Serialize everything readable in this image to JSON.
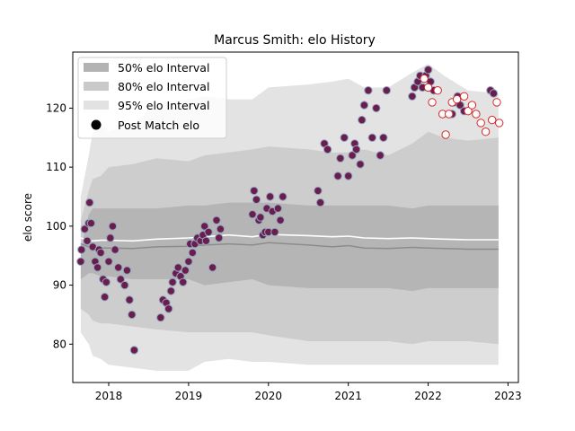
{
  "chart_data": {
    "type": "scatter",
    "title": "Marcus Smith: elo History",
    "xlabel": "",
    "ylabel": "elo score",
    "xlim": [
      2017.55,
      2023.13
    ],
    "ylim": [
      73.5,
      129.5
    ],
    "x_ticks": [
      2018,
      2019,
      2020,
      2021,
      2022,
      2023
    ],
    "x_tick_labels": [
      "2018",
      "2019",
      "2020",
      "2021",
      "2022",
      "2023"
    ],
    "y_ticks": [
      80,
      90,
      100,
      110,
      120
    ],
    "y_tick_labels": [
      "80",
      "90",
      "100",
      "110",
      "120"
    ],
    "grid": false,
    "legend_position": "top-left",
    "legend": [
      {
        "label": "50% elo Interval",
        "kind": "band",
        "color": "#b3b3b3"
      },
      {
        "label": "80% elo Interval",
        "kind": "band",
        "color": "#c9c9c9"
      },
      {
        "label": "95% elo Interval",
        "kind": "band",
        "color": "#e2e2e2"
      },
      {
        "label": "Post Match elo",
        "kind": "marker",
        "color": "#000000"
      }
    ],
    "colors": {
      "band_95": "#e3e3e3",
      "band_80": "#cdcdcd",
      "band_50": "#b5b5b5",
      "median_line": "#8c8c8c",
      "mean_line": "#ffffff",
      "point_fill": "#6b1e4c",
      "point_edge": "#8fa6c4",
      "future_point_fill": "#ffffff",
      "future_point_edge": "#d62728"
    },
    "bands": {
      "x": [
        2017.65,
        2017.75,
        2017.8,
        2017.9,
        2018.0,
        2018.3,
        2018.6,
        2019.0,
        2019.2,
        2019.5,
        2019.8,
        2020.0,
        2020.5,
        2020.8,
        2021.0,
        2021.2,
        2021.5,
        2021.8,
        2022.0,
        2022.2,
        2022.5,
        2022.88
      ],
      "p95_upper": [
        105,
        112,
        116,
        117,
        116,
        117,
        121,
        121.5,
        122,
        121.5,
        121.5,
        123.5,
        124,
        124.5,
        125,
        123.5,
        123.5,
        126,
        127.5,
        125.5,
        123,
        122.5
      ],
      "p80_upper": [
        101,
        106,
        108,
        108.5,
        110,
        110.5,
        111.5,
        111,
        112,
        112.5,
        113,
        113.5,
        113,
        112.5,
        112.5,
        113,
        112,
        114,
        116,
        115,
        114.5,
        115
      ],
      "p50_upper": [
        96,
        102,
        103,
        103,
        103,
        103,
        103,
        103.5,
        103.5,
        104,
        104,
        104,
        103.5,
        103.5,
        103.5,
        103.5,
        103.5,
        103,
        103.5,
        103.5,
        103.5,
        103.5
      ],
      "p50_lower": [
        91,
        92,
        92,
        91.5,
        91.5,
        91,
        91,
        91,
        90,
        90.5,
        91,
        90,
        89.5,
        89.5,
        89.5,
        89.5,
        89.5,
        89,
        89.5,
        89.5,
        89.5,
        89.5
      ],
      "p80_lower": [
        86,
        85,
        84,
        83.5,
        83.5,
        83,
        82.5,
        82,
        82,
        82,
        82,
        81.5,
        80.5,
        80.5,
        80.5,
        80.5,
        80.5,
        80,
        80.5,
        80.5,
        80.5,
        80
      ],
      "p95_lower": [
        82,
        80,
        78,
        77.5,
        76.5,
        76,
        75.5,
        75.5,
        77,
        77.5,
        77,
        77,
        76.5,
        76.5,
        76.5,
        76.5,
        76.5,
        76.5,
        76.5,
        76.5,
        76.5,
        76.5
      ],
      "median": [
        97,
        96.5,
        96.3,
        96.3,
        96.3,
        96.2,
        96.5,
        96.6,
        96.8,
        97,
        96.8,
        97.2,
        96.8,
        96.5,
        96.7,
        96.3,
        96.2,
        96.4,
        96.3,
        96.2,
        96.1,
        96.1
      ],
      "mean": [
        98,
        97.6,
        97.5,
        97.6,
        97.6,
        97.5,
        97.8,
        98,
        98.2,
        98.5,
        98.2,
        98.6,
        98.4,
        98.2,
        98.3,
        98,
        97.9,
        98,
        97.9,
        97.8,
        97.7,
        97.7
      ]
    },
    "points": {
      "x": [
        2017.65,
        2017.66,
        2017.7,
        2017.73,
        2017.75,
        2017.76,
        2017.78,
        2017.8,
        2017.83,
        2017.86,
        2017.88,
        2017.9,
        2017.93,
        2017.95,
        2017.97,
        2018.0,
        2018.02,
        2018.05,
        2018.08,
        2018.12,
        2018.15,
        2018.2,
        2018.23,
        2018.26,
        2018.29,
        2018.32,
        2018.65,
        2018.68,
        2018.72,
        2018.75,
        2018.78,
        2018.8,
        2018.84,
        2018.87,
        2018.9,
        2018.93,
        2018.96,
        2019.0,
        2019.02,
        2019.05,
        2019.08,
        2019.11,
        2019.15,
        2019.18,
        2019.2,
        2019.22,
        2019.25,
        2019.3,
        2019.35,
        2019.38,
        2019.4,
        2019.8,
        2019.82,
        2019.85,
        2019.88,
        2019.9,
        2019.93,
        2019.96,
        2019.98,
        2020.0,
        2020.02,
        2020.05,
        2020.08,
        2020.12,
        2020.15,
        2020.18,
        2020.62,
        2020.65,
        2020.7,
        2020.74,
        2020.87,
        2020.9,
        2020.95,
        2021.0,
        2021.05,
        2021.08,
        2021.1,
        2021.15,
        2021.17,
        2021.2,
        2021.25,
        2021.3,
        2021.35,
        2021.4,
        2021.44,
        2021.48,
        2021.8,
        2021.83,
        2021.87,
        2021.9,
        2021.93,
        2021.97,
        2022.0,
        2022.03,
        2022.07,
        2022.3,
        2022.33,
        2022.37,
        2022.4,
        2022.45,
        2022.78,
        2022.82
      ],
      "y": [
        94,
        96,
        99.5,
        97.5,
        100.5,
        104,
        100.5,
        96.5,
        94,
        93,
        96,
        95.5,
        91,
        88,
        90.5,
        94,
        98,
        100,
        96,
        93,
        91,
        90,
        92.5,
        87.5,
        85,
        79,
        84.5,
        87.5,
        87,
        86,
        89,
        90.5,
        92,
        93,
        91.5,
        90.5,
        92.5,
        94,
        97,
        95.5,
        97,
        98,
        97.5,
        98.5,
        100,
        97.5,
        99,
        93,
        101,
        98,
        99.5,
        102,
        106,
        104.5,
        101,
        101.5,
        98.5,
        99,
        103,
        99,
        105,
        102.5,
        99,
        103,
        101,
        105,
        106,
        104,
        114,
        113,
        108.5,
        111.5,
        115,
        108.5,
        112,
        114,
        113,
        110.5,
        118,
        120.5,
        123,
        115,
        120,
        112,
        115,
        123,
        122,
        123.5,
        124.5,
        125.5,
        123.5,
        125.5,
        126.5,
        124.5,
        123,
        119,
        121,
        122,
        120.5,
        119.5,
        123,
        122.5
      ],
      "x_future": [
        2021.95,
        2022.0,
        2022.05,
        2022.12,
        2022.18,
        2022.22,
        2022.26,
        2022.3,
        2022.36,
        2022.45,
        2022.5,
        2022.55,
        2022.6,
        2022.66,
        2022.72,
        2022.8,
        2022.86,
        2022.89
      ],
      "y_future": [
        125,
        123.5,
        121,
        123,
        119,
        115.5,
        119,
        121,
        121.5,
        122,
        119.5,
        120.5,
        119,
        117.5,
        116,
        118,
        121,
        117.5
      ]
    }
  }
}
